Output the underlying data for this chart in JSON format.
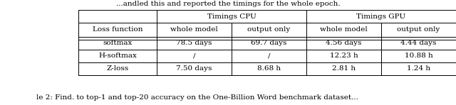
{
  "title_row_cpu": "Timings CPU",
  "title_row_gpu": "Timings GPU",
  "header_row": [
    "Loss function",
    "whole model",
    "output only",
    "whole model",
    "output only"
  ],
  "data_rows": [
    [
      "softmax",
      "78.5 days",
      "69.7 days",
      "4.56 days",
      "4.44 days"
    ],
    [
      "H-softmax",
      "/",
      "/",
      "12.23 h",
      "10.88 h"
    ],
    [
      "Z-loss",
      "7.50 days",
      "8.68 h",
      "2.81 h",
      "1.24 h"
    ]
  ],
  "top_text": "...andled this and reported the timings for the whole epoch.",
  "bottom_text": "le 2: Find. to top-1 and top-20 accuracy on the One-Billion Word benchmark dataset...",
  "background_color": "#ffffff",
  "text_color": "#000000",
  "font_size": 7.5,
  "figsize": [
    6.4,
    1.48
  ],
  "dpi": 100
}
